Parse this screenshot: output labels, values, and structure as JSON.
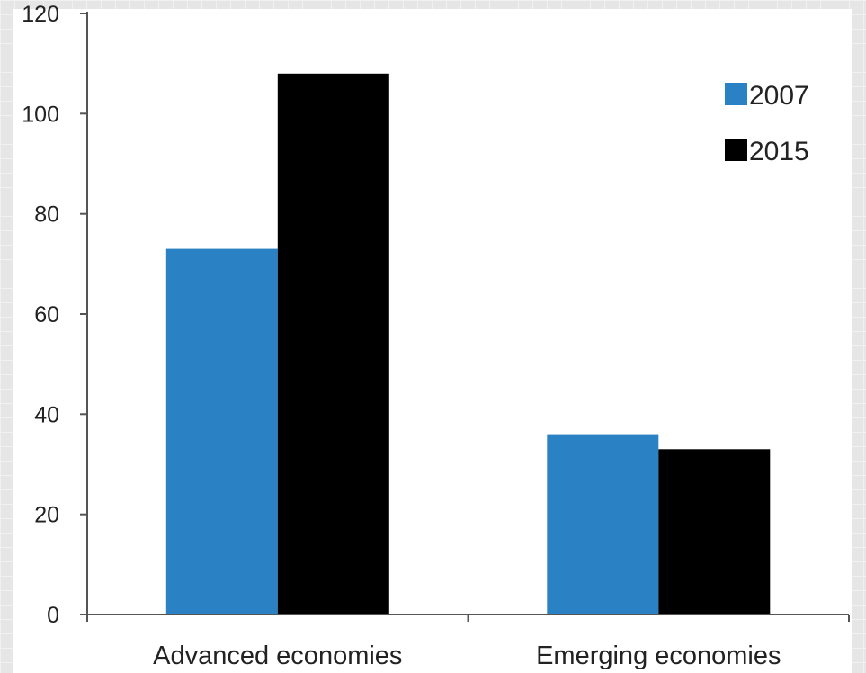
{
  "chart_data": {
    "type": "bar",
    "categories": [
      "Advanced economies",
      "Emerging economies"
    ],
    "series": [
      {
        "name": "2007",
        "color": "#2a82c4",
        "values": [
          73,
          36
        ]
      },
      {
        "name": "2015",
        "color": "#000000",
        "values": [
          108,
          33
        ]
      }
    ],
    "ylim": [
      0,
      120
    ],
    "yticks": [
      0,
      20,
      40,
      60,
      80,
      100,
      120
    ],
    "ytick_labels": [
      "0",
      "20",
      "40",
      "60",
      "80",
      "100",
      "120"
    ],
    "grid": false,
    "legend_position": "top-right"
  }
}
